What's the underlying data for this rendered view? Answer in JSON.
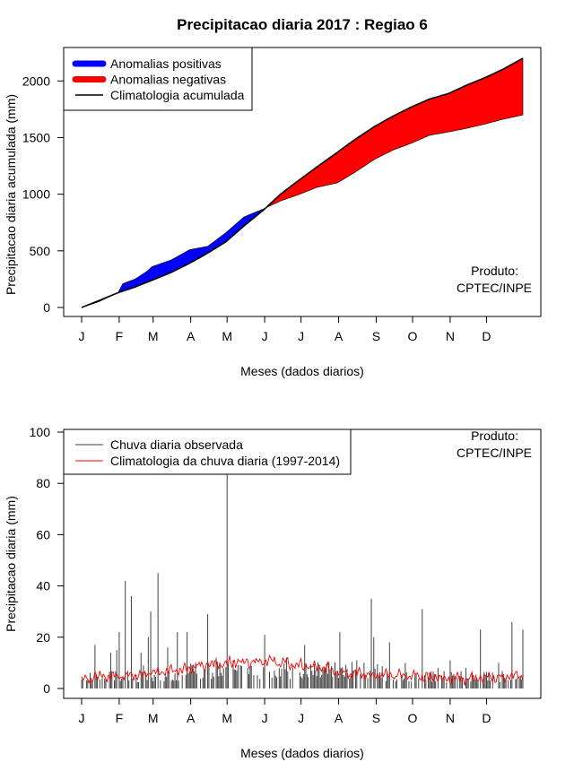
{
  "title": "Precipitacao diaria 2017 : Regiao 6",
  "colors": {
    "positive": "#0000ff",
    "negative": "#ff0000",
    "climatology_line": "#000000",
    "observed_bars": "#404040",
    "climatology_daily": "#ff0000"
  },
  "chart_data": [
    {
      "type": "area",
      "xlabel": "Meses (dados diarios)",
      "ylabel": "Precipitacao diaria acumulada (mm)",
      "xlim": [
        1,
        365
      ],
      "ylim": [
        0,
        2200
      ],
      "yticks": [
        0,
        500,
        1000,
        1500,
        2000
      ],
      "month_ticks": [
        {
          "label": "J",
          "day": 1
        },
        {
          "label": "F",
          "day": 32
        },
        {
          "label": "M",
          "day": 60
        },
        {
          "label": "A",
          "day": 91
        },
        {
          "label": "M",
          "day": 121
        },
        {
          "label": "J",
          "day": 152
        },
        {
          "label": "J",
          "day": 182
        },
        {
          "label": "A",
          "day": 213
        },
        {
          "label": "S",
          "day": 244
        },
        {
          "label": "O",
          "day": 274
        },
        {
          "label": "N",
          "day": 305
        },
        {
          "label": "D",
          "day": 335
        }
      ],
      "legend": [
        {
          "label": "Anomalias positivas",
          "kind": "thick-line",
          "color": "#0000ff"
        },
        {
          "label": "Anomalias negativas",
          "kind": "thick-line",
          "color": "#ff0000"
        },
        {
          "label": "Climatologia acumulada",
          "kind": "line",
          "color": "#000000"
        }
      ],
      "legend_position": "top-left",
      "annotation": [
        "Produto:",
        "CPTEC/INPE"
      ],
      "climatology_cumulative": {
        "days": [
          1,
          15,
          31,
          45,
          59,
          75,
          90,
          105,
          120,
          135,
          151,
          165,
          181,
          195,
          212,
          226,
          243,
          258,
          273,
          288,
          304,
          318,
          334,
          348,
          365
        ],
        "values": [
          0,
          60,
          130,
          180,
          240,
          310,
          390,
          480,
          580,
          720,
          860,
          1000,
          1130,
          1240,
          1370,
          1480,
          1600,
          1690,
          1770,
          1840,
          1890,
          1960,
          2030,
          2100,
          2200
        ]
      },
      "observed_cumulative": {
        "days": [
          1,
          15,
          31,
          35,
          45,
          55,
          59,
          75,
          90,
          105,
          120,
          135,
          151,
          165,
          181,
          195,
          212,
          226,
          243,
          258,
          273,
          288,
          304,
          318,
          334,
          348,
          365
        ],
        "values": [
          0,
          50,
          130,
          210,
          250,
          320,
          360,
          420,
          510,
          540,
          660,
          800,
          870,
          940,
          1000,
          1060,
          1100,
          1190,
          1310,
          1390,
          1450,
          1520,
          1550,
          1580,
          1620,
          1660,
          1700
        ]
      }
    },
    {
      "type": "bar",
      "xlabel": "Meses (dados diarios)",
      "ylabel": "Precipitacao diaria (mm)",
      "xlim": [
        1,
        365
      ],
      "ylim": [
        0,
        100
      ],
      "yticks": [
        0,
        20,
        40,
        60,
        80,
        100
      ],
      "legend": [
        {
          "label": "Chuva diaria observada",
          "kind": "line",
          "color": "#404040"
        },
        {
          "label": "Climatologia da chuva diaria (1997-2014)",
          "kind": "line",
          "color": "#ff0000"
        }
      ],
      "legend_position": "top-left",
      "annotation": [
        "Produto:",
        "CPTEC/INPE"
      ],
      "observed_peaks": {
        "days": [
          12,
          25,
          30,
          32,
          37,
          42,
          50,
          52,
          56,
          58,
          64,
          72,
          80,
          88,
          95,
          105,
          112,
          118,
          121,
          126,
          132,
          138,
          152,
          160,
          170,
          185,
          200,
          214,
          228,
          240,
          242,
          246,
          255,
          268,
          282,
          295,
          305,
          318,
          330,
          345,
          356,
          365
        ],
        "values": [
          17,
          14,
          15,
          22,
          42,
          36,
          14,
          9,
          20,
          30,
          45,
          16,
          22,
          22,
          10,
          29,
          12,
          8,
          84,
          11,
          9,
          8,
          21,
          7,
          12,
          17,
          8,
          22,
          11,
          35,
          20,
          5,
          18,
          10,
          31,
          8,
          11,
          8,
          23,
          10,
          26,
          23
        ]
      },
      "climatology_daily": {
        "days": [
          1,
          31,
          59,
          90,
          120,
          151,
          181,
          212,
          243,
          273,
          304,
          334,
          365
        ],
        "values": [
          4,
          5,
          6,
          8,
          10,
          11,
          9,
          7,
          5,
          5,
          4,
          4,
          5
        ]
      }
    }
  ]
}
